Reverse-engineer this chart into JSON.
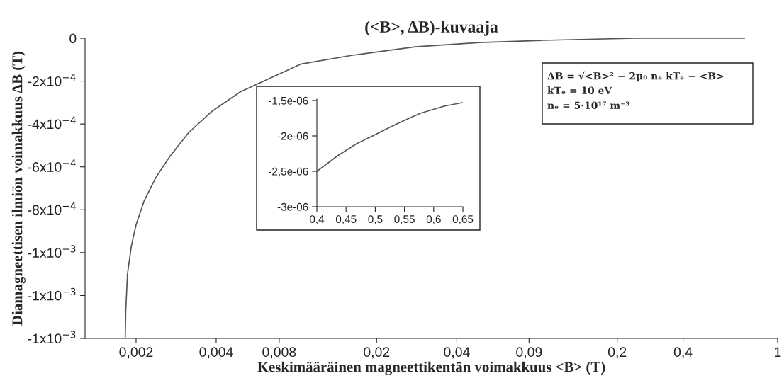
{
  "chart_data": [
    {
      "type": "line",
      "title": "(<B>, ΔB)-kuvaaja",
      "xlabel": "Keskimääräinen magneettikentän voimakkuus <B> (T)",
      "ylabel": "Diamagneettisen ilmiön voimakkuus ΔB (T)",
      "log": "x",
      "grid": false,
      "legend": false,
      "marker": "none",
      "line_style": "solid",
      "x": [
        0.0018,
        0.00181,
        0.00184,
        0.00191,
        0.002,
        0.00216,
        0.00242,
        0.00278,
        0.00333,
        0.00418,
        0.00549,
        0.00689,
        0.00991,
        0.0161,
        0.0299,
        0.0556,
        0.103,
        0.252,
        0.726
      ],
      "series": [
        {
          "color": "#555555",
          "values": [
            -0.0014,
            -0.00127,
            -0.0011,
            -0.00097,
            -0.00087,
            -0.00076,
            -0.00065,
            -0.00055,
            -0.00044,
            -0.00034,
            -0.00025,
            -0.0002,
            -0.00012,
            -8e-05,
            -4e-05,
            -2e-05,
            -1e-05,
            0,
            0
          ]
        }
      ],
      "xlim": [
        0.00122,
        1
      ],
      "xticks": [
        {
          "value": 0.002,
          "label": "0,002"
        },
        {
          "value": 0.004345,
          "label": "0,004"
        },
        {
          "value": 0.008,
          "label": "0,008"
        },
        {
          "value": 0.02055,
          "label": "0,02"
        },
        {
          "value": 0.0447,
          "label": "0,04"
        },
        {
          "value": 0.09,
          "label": "0,09"
        },
        {
          "value": 0.2114,
          "label": "0,2"
        },
        {
          "value": 0.4,
          "label": "0,4"
        },
        1
      ],
      "ylim": [
        -0.0014,
        0
      ],
      "yticks": [
        0,
        {
          "value": -0.0002,
          "label": "-2x10$^{−4}$"
        },
        {
          "value": -0.0004,
          "label": "-4x10$^{−4}$"
        },
        {
          "value": -0.0006,
          "label": "-6x10$^{−4}$"
        },
        {
          "value": -0.0008,
          "label": "-8x10$^{−4}$"
        },
        {
          "value": -0.001,
          "label": "-1x10$^{−3}$"
        },
        {
          "value": -0.0012,
          "label": "-1x10$^{−3}$"
        },
        {
          "value": -0.0014,
          "label": "-1x10$^{−3}$"
        }
      ],
      "annotations": [
        "ΔB = √<B>² − 2μ₀ nₑ kTₑ − <B>",
        "kTₑ = 10 eV",
        "nₑ = 5·10¹⁷ m⁻³"
      ]
    },
    {
      "type": "line",
      "grid": false,
      "legend": false,
      "marker": "none",
      "line_style": "solid",
      "x": [
        0.4,
        0.4356,
        0.468,
        0.5003,
        0.5367,
        0.5772,
        0.6177,
        0.649
      ],
      "series": [
        {
          "color": "#555555",
          "values": [
            -2.5e-06,
            -2.28e-06,
            -2.11e-06,
            -1.98e-06,
            -1.83e-06,
            -1.68e-06,
            -1.58e-06,
            -1.53e-06
          ]
        }
      ],
      "xlim": [
        0.4,
        0.65
      ],
      "xticks": [
        {
          "value": 0.4,
          "label": "0,4"
        },
        {
          "value": 0.45,
          "label": "0,45"
        },
        {
          "value": 0.5,
          "label": "0,5"
        },
        {
          "value": 0.55,
          "label": "0,55"
        },
        {
          "value": 0.6,
          "label": "0,6"
        },
        {
          "value": 0.65,
          "label": "0,65"
        }
      ],
      "ylim": [
        -3e-06,
        -1.48e-06
      ],
      "yticks": [
        {
          "value": -3e-06,
          "label": "-3e-06"
        },
        {
          "value": -2.5e-06,
          "label": "-2,5e-06"
        },
        {
          "value": -2e-06,
          "label": "-2e-06"
        },
        {
          "value": -1.5e-06,
          "label": "-1,5e-06"
        }
      ]
    }
  ]
}
